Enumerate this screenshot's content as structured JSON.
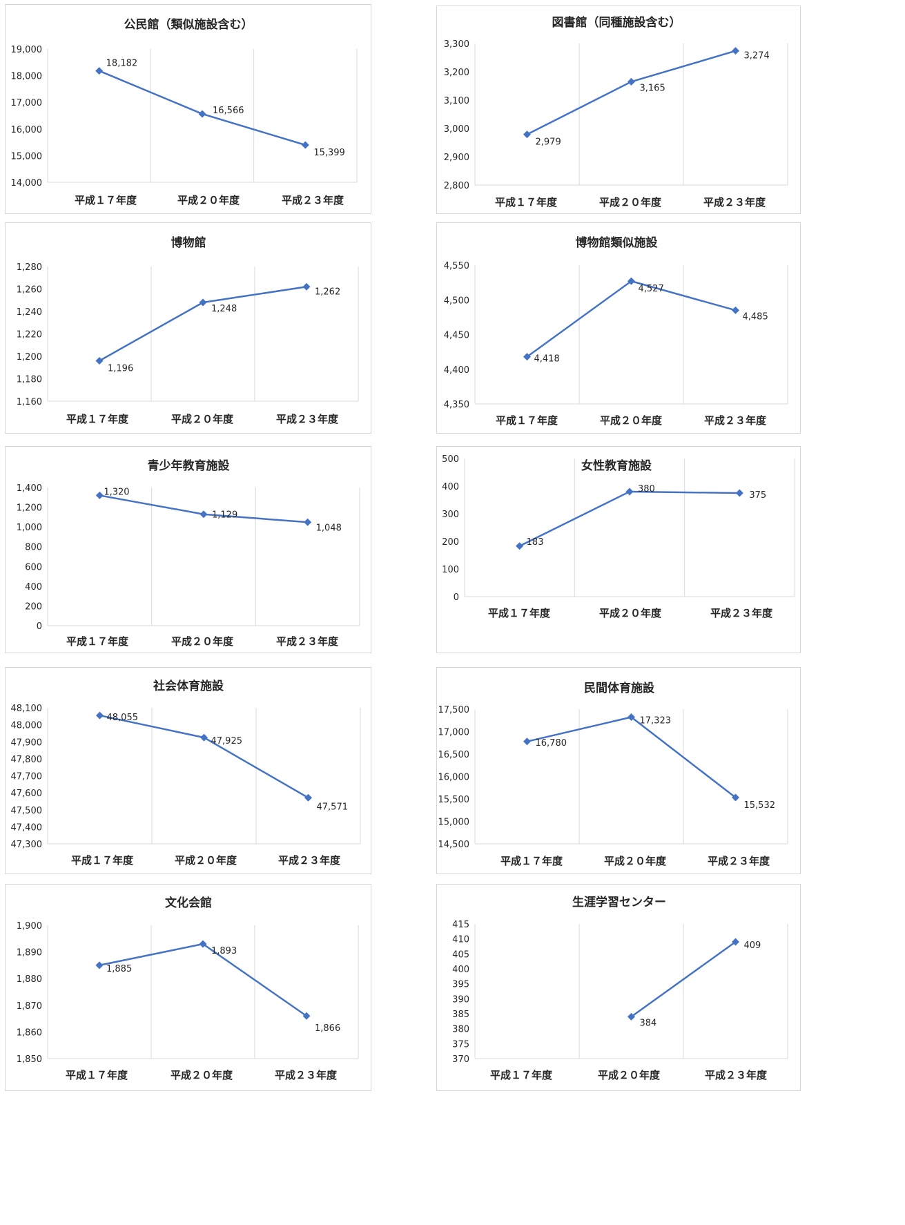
{
  "style": {
    "line_color": "#4472c4",
    "grid_color": "#d9d9d9",
    "text_color": "#262626"
  },
  "chart_data": [
    {
      "id": "kominkan",
      "type": "line",
      "title": "公民館（類似施設含む）",
      "categories": [
        "平成１７年度",
        "平成２０年度",
        "平成２３年度"
      ],
      "values": [
        18182,
        16566,
        15399
      ],
      "data_labels": [
        "18,182",
        "16,566",
        "15,399"
      ],
      "ylim": [
        14000,
        19000
      ],
      "yticks": [
        14000,
        15000,
        16000,
        17000,
        18000,
        19000
      ],
      "ytick_labels": [
        "14,000",
        "15,000",
        "16,000",
        "17,000",
        "18,000",
        "19,000"
      ],
      "grid": "vertical",
      "legend": "none"
    },
    {
      "id": "toshokan",
      "type": "line",
      "title": "図書館（同種施設含む）",
      "categories": [
        "平成１７年度",
        "平成２０年度",
        "平成２３年度"
      ],
      "values": [
        2979,
        3165,
        3274
      ],
      "data_labels": [
        "2,979",
        "3,165",
        "3,274"
      ],
      "ylim": [
        2800,
        3300
      ],
      "yticks": [
        2800,
        2900,
        3000,
        3100,
        3200,
        3300
      ],
      "ytick_labels": [
        "2,800",
        "2,900",
        "3,000",
        "3,100",
        "3,200",
        "3,300"
      ],
      "grid": "vertical",
      "legend": "none"
    },
    {
      "id": "hakubutsukan",
      "type": "line",
      "title": "博物館",
      "categories": [
        "平成１７年度",
        "平成２０年度",
        "平成２３年度"
      ],
      "values": [
        1196,
        1248,
        1262
      ],
      "data_labels": [
        "1,196",
        "1,248",
        "1,262"
      ],
      "ylim": [
        1160,
        1280
      ],
      "yticks": [
        1160,
        1180,
        1200,
        1220,
        1240,
        1260,
        1280
      ],
      "ytick_labels": [
        "1,160",
        "1,180",
        "1,200",
        "1,220",
        "1,240",
        "1,260",
        "1,280"
      ],
      "grid": "vertical",
      "legend": "none"
    },
    {
      "id": "hakubutsukan-ruiji",
      "type": "line",
      "title": "博物館類似施設",
      "categories": [
        "平成１７年度",
        "平成２０年度",
        "平成２３年度"
      ],
      "values": [
        4418,
        4527,
        4485
      ],
      "data_labels": [
        "4,418",
        "4,527",
        "4,485"
      ],
      "ylim": [
        4350,
        4550
      ],
      "yticks": [
        4350,
        4400,
        4450,
        4500,
        4550
      ],
      "ytick_labels": [
        "4,350",
        "4,400",
        "4,450",
        "4,500",
        "4,550"
      ],
      "grid": "vertical",
      "legend": "none"
    },
    {
      "id": "seishonen",
      "type": "line",
      "title": "青少年教育施設",
      "categories": [
        "平成１７年度",
        "平成２０年度",
        "平成２３年度"
      ],
      "values": [
        1320,
        1129,
        1048
      ],
      "data_labels": [
        "1,320",
        "1,129",
        "1,048"
      ],
      "ylim": [
        0,
        1400
      ],
      "yticks": [
        0,
        200,
        400,
        600,
        800,
        1000,
        1200,
        1400
      ],
      "ytick_labels": [
        "0",
        "200",
        "400",
        "600",
        "800",
        "1,000",
        "1,200",
        "1,400"
      ],
      "grid": "vertical",
      "legend": "none"
    },
    {
      "id": "josei",
      "type": "line",
      "title": "女性教育施設",
      "categories": [
        "平成１７年度",
        "平成２０年度",
        "平成２３年度"
      ],
      "values": [
        183,
        380,
        375
      ],
      "data_labels": [
        "183",
        "380",
        "375"
      ],
      "ylim": [
        0,
        500
      ],
      "yticks": [
        0,
        100,
        200,
        300,
        400,
        500
      ],
      "ytick_labels": [
        "0",
        "100",
        "200",
        "300",
        "400",
        "500"
      ],
      "grid": "vertical",
      "legend": "none"
    },
    {
      "id": "shakai-taiiku",
      "type": "line",
      "title": "社会体育施設",
      "categories": [
        "平成１７年度",
        "平成２０年度",
        "平成２３年度"
      ],
      "values": [
        48055,
        47925,
        47571
      ],
      "data_labels": [
        "48,055",
        "47,925",
        "47,571"
      ],
      "ylim": [
        47300,
        48100
      ],
      "yticks": [
        47300,
        47400,
        47500,
        47600,
        47700,
        47800,
        47900,
        48000,
        48100
      ],
      "ytick_labels": [
        "47,300",
        "47,400",
        "47,500",
        "47,600",
        "47,700",
        "47,800",
        "47,900",
        "48,000",
        "48,100"
      ],
      "grid": "vertical",
      "legend": "none"
    },
    {
      "id": "minkan-taiiku",
      "type": "line",
      "title": "民間体育施設",
      "categories": [
        "平成１７年度",
        "平成２０年度",
        "平成２３年度"
      ],
      "values": [
        16780,
        17323,
        15532
      ],
      "data_labels": [
        "16,780",
        "17,323",
        "15,532"
      ],
      "ylim": [
        14500,
        17500
      ],
      "yticks": [
        14500,
        15000,
        15500,
        16000,
        16500,
        17000,
        17500
      ],
      "ytick_labels": [
        "14,500",
        "15,000",
        "15,500",
        "16,000",
        "16,500",
        "17,000",
        "17,500"
      ],
      "grid": "vertical",
      "legend": "none"
    },
    {
      "id": "bunka-kaikan",
      "type": "line",
      "title": "文化会館",
      "categories": [
        "平成１７年度",
        "平成２０年度",
        "平成２３年度"
      ],
      "values": [
        1885,
        1893,
        1866
      ],
      "data_labels": [
        "1,885",
        "1,893",
        "1,866"
      ],
      "ylim": [
        1850,
        1900
      ],
      "yticks": [
        1850,
        1860,
        1870,
        1880,
        1890,
        1900
      ],
      "ytick_labels": [
        "1,850",
        "1,860",
        "1,870",
        "1,880",
        "1,890",
        "1,900"
      ],
      "grid": "vertical",
      "legend": "none"
    },
    {
      "id": "shogai-gakushu",
      "type": "line",
      "title": "生涯学習センター",
      "categories": [
        "平成１７年度",
        "平成２０年度",
        "平成２３年度"
      ],
      "values": [
        null,
        384,
        409
      ],
      "data_labels": [
        "",
        "384",
        "409"
      ],
      "ylim": [
        370,
        415
      ],
      "yticks": [
        370,
        375,
        380,
        385,
        390,
        395,
        400,
        405,
        410,
        415
      ],
      "ytick_labels": [
        "370",
        "375",
        "380",
        "385",
        "390",
        "395",
        "400",
        "405",
        "410",
        "415"
      ],
      "grid": "vertical",
      "legend": "none"
    }
  ]
}
